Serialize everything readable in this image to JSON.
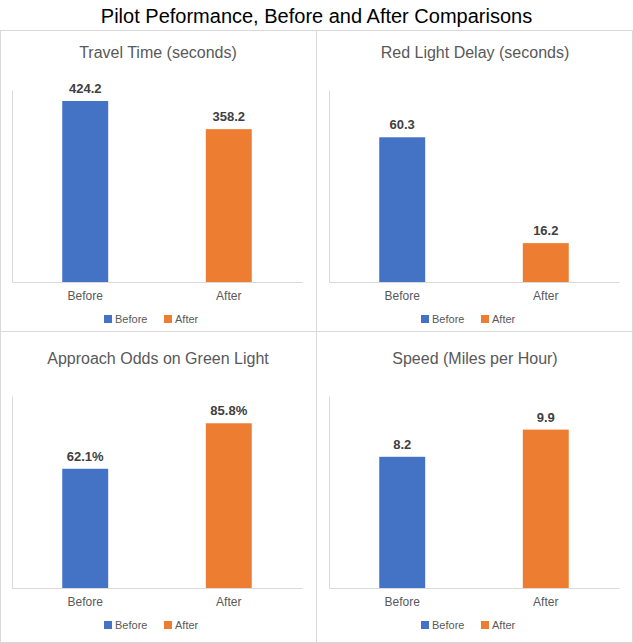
{
  "title": "Pilot Peformance, Before and After Comparisons",
  "chart_data": [
    {
      "type": "bar",
      "title": "Travel Time (seconds)",
      "categories": [
        "Before",
        "After"
      ],
      "values": [
        424.2,
        358.2
      ],
      "colors": [
        "#4472c4",
        "#ed7d31"
      ],
      "ylim": [
        0,
        450
      ],
      "data_labels": true,
      "tick_labels": "x",
      "legend": "bottom"
    },
    {
      "type": "bar",
      "title": "Red Light Delay (seconds)",
      "categories": [
        "Before",
        "After"
      ],
      "values": [
        60.3,
        16.2
      ],
      "colors": [
        "#4472c4",
        "#ed7d31"
      ],
      "ylim": [
        0,
        80
      ],
      "data_labels": true,
      "tick_labels": "x",
      "legend": "bottom"
    },
    {
      "type": "bar",
      "title": "Approach Odds on Green Light",
      "categories": [
        "Before",
        "After"
      ],
      "values": [
        62.1,
        85.8
      ],
      "value_labels": [
        "62.1%",
        "85.8%"
      ],
      "colors": [
        "#4472c4",
        "#ed7d31"
      ],
      "ylim": [
        0,
        100
      ],
      "data_labels": true,
      "tick_labels": "x",
      "legend": "bottom"
    },
    {
      "type": "bar",
      "title": "Speed (Miles per Hour)",
      "categories": [
        "Before",
        "After"
      ],
      "values": [
        8.2,
        9.9
      ],
      "colors": [
        "#4472c4",
        "#ed7d31"
      ],
      "ylim": [
        0,
        12
      ],
      "data_labels": true,
      "tick_labels": "x",
      "legend": "bottom"
    }
  ]
}
